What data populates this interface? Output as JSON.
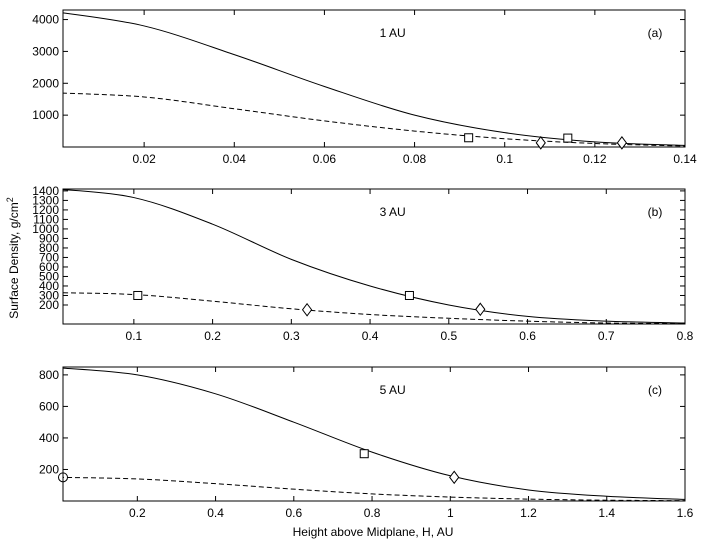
{
  "ylabel": "Surface Density, g/cm",
  "ylabel_sup": "2",
  "xlabel": "Height above Midplane, H, AU",
  "chart_data": [
    {
      "type": "line",
      "title": "1 AU",
      "panel_tag": "(a)",
      "xlim": [
        0.002,
        0.14
      ],
      "ylim": [
        0,
        4300
      ],
      "xticks": [
        0.02,
        0.04,
        0.06,
        0.08,
        0.1,
        0.12,
        0.14
      ],
      "xtick_labels": [
        "0.02",
        "0.04",
        "0.06",
        "0.08",
        "0.1",
        "0.12",
        "0.14"
      ],
      "yticks": [
        1000,
        2000,
        3000,
        4000
      ],
      "ytick_labels": [
        "1000",
        "2000",
        "3000",
        "4000"
      ],
      "series": [
        {
          "style": "solid",
          "x": [
            0.0,
            0.02,
            0.04,
            0.06,
            0.08,
            0.1,
            0.12,
            0.14
          ],
          "y": [
            4250,
            3800,
            2900,
            1900,
            1000,
            450,
            160,
            50
          ]
        },
        {
          "style": "dashed",
          "x": [
            0.0,
            0.02,
            0.04,
            0.06,
            0.08,
            0.1,
            0.12,
            0.14
          ],
          "y": [
            1700,
            1570,
            1200,
            820,
            500,
            260,
            110,
            30
          ]
        }
      ],
      "markers": [
        {
          "shape": "square",
          "x": 0.092,
          "y": 290
        },
        {
          "shape": "square",
          "x": 0.114,
          "y": 280
        },
        {
          "shape": "diamond",
          "x": 0.108,
          "y": 130
        },
        {
          "shape": "diamond",
          "x": 0.126,
          "y": 130
        }
      ]
    },
    {
      "type": "line",
      "title": "3 AU",
      "panel_tag": "(b)",
      "xlim": [
        0.01,
        0.8
      ],
      "ylim": [
        0,
        1420
      ],
      "xticks": [
        0.1,
        0.2,
        0.3,
        0.4,
        0.5,
        0.6,
        0.7,
        0.8
      ],
      "xtick_labels": [
        "0.1",
        "0.2",
        "0.3",
        "0.4",
        "0.5",
        "0.6",
        "0.7",
        "0.8"
      ],
      "yticks": [
        200,
        300,
        400,
        500,
        600,
        700,
        800,
        900,
        1000,
        1100,
        1200,
        1300,
        1400
      ],
      "ytick_labels": [
        "200",
        "300",
        "400",
        "500",
        "600",
        "700",
        "800",
        "900",
        "1000",
        "1100",
        "1200",
        "1300",
        "1400"
      ],
      "series": [
        {
          "style": "solid",
          "x": [
            0.0,
            0.1,
            0.2,
            0.3,
            0.4,
            0.5,
            0.6,
            0.7,
            0.8
          ],
          "y": [
            1420,
            1330,
            1050,
            680,
            400,
            200,
            80,
            30,
            10
          ]
        },
        {
          "style": "dashed",
          "x": [
            0.0,
            0.1,
            0.2,
            0.3,
            0.4,
            0.5,
            0.6,
            0.7,
            0.8
          ],
          "y": [
            330,
            310,
            240,
            160,
            100,
            60,
            30,
            10,
            5
          ]
        }
      ],
      "markers": [
        {
          "shape": "square",
          "x": 0.105,
          "y": 300
        },
        {
          "shape": "square",
          "x": 0.45,
          "y": 300
        },
        {
          "shape": "diamond",
          "x": 0.32,
          "y": 150
        },
        {
          "shape": "diamond",
          "x": 0.54,
          "y": 155
        }
      ]
    },
    {
      "type": "line",
      "title": "5 AU",
      "panel_tag": "(c)",
      "xlim": [
        0.01,
        1.6
      ],
      "ylim": [
        0,
        850
      ],
      "xticks": [
        0.2,
        0.4,
        0.6,
        0.8,
        1.0,
        1.2,
        1.4,
        1.6
      ],
      "xtick_labels": [
        "0.2",
        "0.4",
        "0.6",
        "0.8",
        "1",
        "1.2",
        "1.4",
        "1.6"
      ],
      "yticks": [
        200,
        400,
        600,
        800
      ],
      "ytick_labels": [
        "200",
        "400",
        "600",
        "800"
      ],
      "series": [
        {
          "style": "solid",
          "x": [
            0.0,
            0.2,
            0.4,
            0.6,
            0.8,
            1.0,
            1.2,
            1.4,
            1.6
          ],
          "y": [
            845,
            800,
            680,
            500,
            310,
            160,
            70,
            30,
            10
          ]
        },
        {
          "style": "dashed",
          "x": [
            0.0,
            0.2,
            0.4,
            0.6,
            0.8,
            1.0,
            1.2,
            1.4,
            1.6
          ],
          "y": [
            150,
            140,
            110,
            75,
            45,
            25,
            12,
            5,
            2
          ]
        }
      ],
      "markers": [
        {
          "shape": "circle",
          "x": 0.01,
          "y": 150
        },
        {
          "shape": "square",
          "x": 0.78,
          "y": 300
        },
        {
          "shape": "diamond",
          "x": 1.01,
          "y": 150
        }
      ]
    }
  ]
}
